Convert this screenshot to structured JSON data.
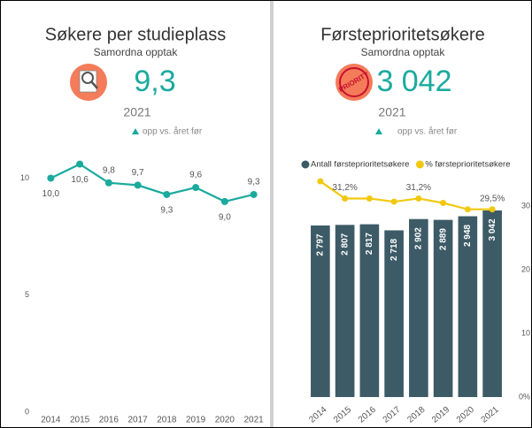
{
  "chart_data": [
    {
      "type": "line",
      "title": "Søkere per studieplass",
      "subtitle": "Samordna opptak",
      "kpi_value": "9,3",
      "kpi_year": "2021",
      "kpi_note": "opp vs. året før",
      "categories": [
        "2014",
        "2015",
        "2016",
        "2017",
        "2018",
        "2019",
        "2020",
        "2021"
      ],
      "series": [
        {
          "name": "Søkere per studieplass",
          "color": "#1aaa9e",
          "values": [
            10.0,
            10.6,
            9.8,
            9.7,
            9.3,
            9.6,
            9.0,
            9.3
          ],
          "value_labels": [
            "10,0",
            "10,6",
            "9,8",
            "9,7",
            "9,3",
            "9,6",
            "9,0",
            "9,3"
          ]
        }
      ],
      "ylim": [
        0,
        11
      ],
      "yticks": [
        0,
        5,
        10
      ],
      "grid": false
    },
    {
      "type": "bar",
      "title": "Førsteprioritetsøkere",
      "subtitle": "Samordna opptak",
      "kpi_value": "3 042",
      "kpi_year": "2021",
      "kpi_note": "opp vs. året før",
      "icon_label": "PRIORITY",
      "categories": [
        "2014",
        "2015",
        "2016",
        "2017",
        "2018",
        "2019",
        "2020",
        "2021"
      ],
      "series": [
        {
          "name": "Antall førsteprioritetsøkere",
          "color": "#3d5b66",
          "values": [
            2797,
            2807,
            2817,
            2718,
            2902,
            2889,
            2948,
            3042
          ],
          "value_labels": [
            "2 797",
            "2 807",
            "2 817",
            "2 718",
            "2 902",
            "2 889",
            "2 948",
            "3 042"
          ]
        },
        {
          "name": "% førsteprioritetsøkere",
          "color": "#f2c80f",
          "type": "line",
          "axis": "y2",
          "values": [
            33.9,
            31.2,
            31.2,
            30.7,
            31.2,
            30.5,
            29.5,
            29.5
          ],
          "value_labels": [
            null,
            "31,2%",
            null,
            null,
            "31,2%",
            null,
            null,
            "29,5%"
          ]
        }
      ],
      "ylim": [
        0,
        3590
      ],
      "y2lim": [
        0,
        34.6
      ],
      "y2ticks": [
        {
          "value": 0,
          "label": "0%"
        },
        10,
        20,
        30
      ],
      "legend": "top-left",
      "grid": false
    }
  ]
}
